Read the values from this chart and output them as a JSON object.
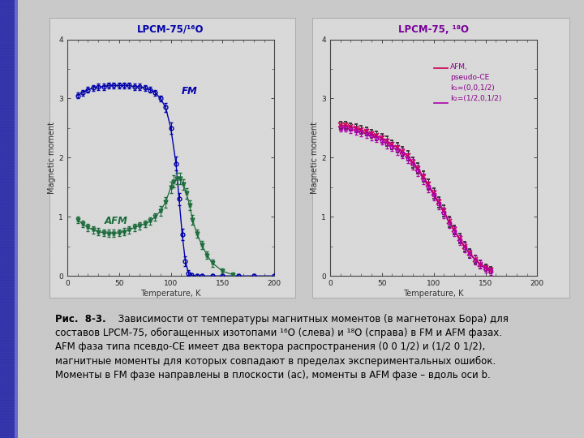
{
  "fig_width": 7.2,
  "fig_height": 5.4,
  "fig_dpi": 100,
  "bg_color": "#cccccc",
  "left_title": "LPCM-75/¹⁶O",
  "right_title": "LPCM-75, ¹⁸O",
  "xlabel": "Temperature, K",
  "ylabel": "Magnetic moment",
  "fm_color": "#0000AA",
  "afm_color": "#1a6b3a",
  "rc1": "#CC0055",
  "rc2": "#AA00AA",
  "fm_T": [
    10,
    15,
    20,
    25,
    30,
    35,
    40,
    45,
    50,
    55,
    60,
    65,
    70,
    75,
    80,
    85,
    90,
    95,
    100,
    105,
    108,
    111,
    114,
    117,
    120,
    125,
    130,
    140,
    150,
    165,
    180,
    200
  ],
  "fm_M": [
    3.05,
    3.1,
    3.15,
    3.18,
    3.2,
    3.2,
    3.22,
    3.22,
    3.22,
    3.22,
    3.22,
    3.2,
    3.2,
    3.18,
    3.15,
    3.1,
    3.0,
    2.85,
    2.5,
    1.9,
    1.3,
    0.7,
    0.25,
    0.05,
    0.01,
    0.0,
    0.0,
    0.0,
    0.0,
    0.0,
    0.0,
    0.0
  ],
  "fm_err": [
    0.05,
    0.05,
    0.05,
    0.05,
    0.05,
    0.05,
    0.05,
    0.05,
    0.05,
    0.05,
    0.05,
    0.05,
    0.05,
    0.05,
    0.05,
    0.05,
    0.05,
    0.07,
    0.1,
    0.12,
    0.1,
    0.1,
    0.08,
    0.05,
    0.03,
    0.03,
    0.03,
    0.03,
    0.03,
    0.03,
    0.03,
    0.03
  ],
  "afm_T": [
    10,
    15,
    20,
    25,
    30,
    35,
    40,
    45,
    50,
    55,
    60,
    65,
    70,
    75,
    80,
    85,
    90,
    95,
    100,
    103,
    106,
    109,
    112,
    115,
    118,
    121,
    125,
    130,
    135,
    140,
    150,
    160
  ],
  "afm_M": [
    0.95,
    0.88,
    0.82,
    0.78,
    0.75,
    0.73,
    0.72,
    0.72,
    0.73,
    0.75,
    0.78,
    0.82,
    0.85,
    0.88,
    0.93,
    1.0,
    1.1,
    1.25,
    1.5,
    1.6,
    1.65,
    1.65,
    1.55,
    1.4,
    1.2,
    0.95,
    0.72,
    0.52,
    0.35,
    0.22,
    0.08,
    0.02
  ],
  "afm_err": [
    0.06,
    0.06,
    0.06,
    0.06,
    0.06,
    0.06,
    0.06,
    0.06,
    0.06,
    0.06,
    0.06,
    0.06,
    0.06,
    0.06,
    0.06,
    0.06,
    0.08,
    0.09,
    0.1,
    0.1,
    0.1,
    0.1,
    0.09,
    0.09,
    0.08,
    0.08,
    0.07,
    0.07,
    0.06,
    0.06,
    0.05,
    0.04
  ],
  "rT": [
    10,
    15,
    20,
    25,
    30,
    35,
    40,
    45,
    50,
    55,
    60,
    65,
    70,
    75,
    80,
    85,
    90,
    95,
    100,
    105,
    110,
    115,
    120,
    125,
    130,
    135,
    140,
    145,
    150,
    155
  ],
  "rM1": [
    2.55,
    2.55,
    2.52,
    2.5,
    2.47,
    2.44,
    2.4,
    2.37,
    2.33,
    2.28,
    2.22,
    2.17,
    2.1,
    2.03,
    1.92,
    1.82,
    1.68,
    1.55,
    1.4,
    1.25,
    1.1,
    0.92,
    0.78,
    0.63,
    0.5,
    0.38,
    0.28,
    0.2,
    0.14,
    0.1
  ],
  "rM2": [
    2.5,
    2.5,
    2.48,
    2.46,
    2.43,
    2.41,
    2.37,
    2.34,
    2.3,
    2.24,
    2.19,
    2.13,
    2.07,
    1.99,
    1.89,
    1.78,
    1.64,
    1.51,
    1.37,
    1.22,
    1.07,
    0.9,
    0.76,
    0.61,
    0.48,
    0.37,
    0.27,
    0.19,
    0.12,
    0.08
  ],
  "re1": [
    0.06,
    0.06,
    0.06,
    0.07,
    0.07,
    0.07,
    0.07,
    0.07,
    0.08,
    0.08,
    0.08,
    0.08,
    0.08,
    0.08,
    0.09,
    0.09,
    0.09,
    0.09,
    0.09,
    0.09,
    0.09,
    0.09,
    0.08,
    0.08,
    0.08,
    0.07,
    0.07,
    0.07,
    0.06,
    0.06
  ],
  "re2": [
    0.06,
    0.06,
    0.06,
    0.07,
    0.07,
    0.07,
    0.07,
    0.07,
    0.08,
    0.08,
    0.08,
    0.08,
    0.08,
    0.08,
    0.09,
    0.09,
    0.09,
    0.09,
    0.09,
    0.09,
    0.09,
    0.09,
    0.08,
    0.08,
    0.08,
    0.07,
    0.07,
    0.07,
    0.06,
    0.06
  ]
}
